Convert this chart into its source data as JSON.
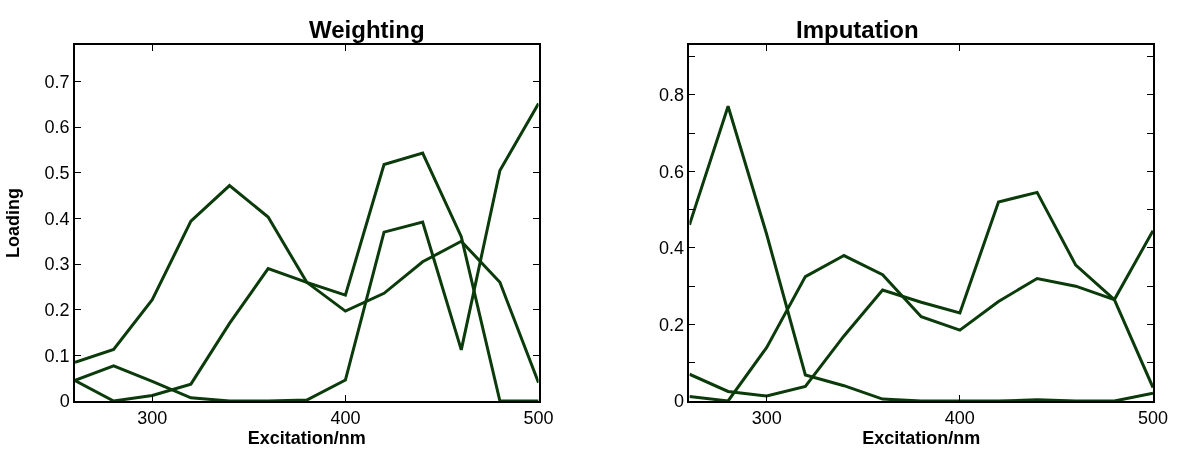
{
  "chart_data": [
    {
      "type": "line",
      "title": "Weighting",
      "xlabel": "Excitation/nm",
      "ylabel": "Loading",
      "x": [
        260,
        280,
        300,
        320,
        340,
        360,
        380,
        400,
        420,
        440,
        460,
        480,
        500
      ],
      "xlim": [
        260,
        500
      ],
      "xticks": [
        300,
        400,
        500
      ],
      "ylim": [
        0,
        0.78
      ],
      "yticks": [
        0,
        0.1,
        0.2,
        0.3,
        0.4,
        0.5,
        0.6,
        0.7
      ],
      "line_style": "solid",
      "marker": "none",
      "series": [
        {
          "color": "#0b3a0b",
          "values": [
            0.085,
            0.113,
            0.222,
            0.394,
            0.472,
            0.403,
            0.26,
            0.197,
            0.236,
            0.305,
            0.35,
            0.26,
            0.04
          ]
        },
        {
          "color": "#0b3a0b",
          "values": [
            0.045,
            0,
            0.012,
            0.037,
            0.17,
            0.29,
            0.26,
            0.232,
            0.518,
            0.543,
            0.36,
            0,
            0
          ]
        },
        {
          "color": "#0b3a0b",
          "values": [
            0.045,
            0.077,
            0.043,
            0.007,
            0,
            0,
            0.002,
            0.046,
            0.37,
            0.392,
            0.112,
            0.505,
            0.652
          ]
        }
      ]
    },
    {
      "type": "line",
      "title": "Imputation",
      "xlabel": "Excitation/nm",
      "x": [
        260,
        280,
        300,
        320,
        340,
        360,
        380,
        400,
        420,
        440,
        460,
        480,
        500
      ],
      "xlim": [
        260,
        500
      ],
      "xticks": [
        300,
        400,
        500
      ],
      "ylim": [
        0,
        0.93
      ],
      "yticks": [
        0,
        {
          "value": 0.1,
          "label": null
        },
        0.2,
        {
          "value": 0.3,
          "label": null
        },
        0.4,
        {
          "value": 0.5,
          "label": null
        },
        0.6,
        {
          "value": 0.7,
          "label": null
        },
        0.8,
        {
          "value": 0.9,
          "label": null
        }
      ],
      "line_style": "solid",
      "marker": "none",
      "series": [
        {
          "color": "#0b3a0b",
          "values": [
            0.46,
            0.77,
            0.435,
            0.068,
            0.04,
            0.005,
            0,
            0,
            0,
            0.003,
            0,
            0,
            0.02
          ]
        },
        {
          "color": "#0b3a0b",
          "values": [
            0.07,
            0.025,
            0.013,
            0.038,
            0.17,
            0.29,
            0.258,
            0.23,
            0.52,
            0.545,
            0.355,
            0.265,
            0.035
          ]
        },
        {
          "color": "#0b3a0b",
          "values": [
            0.012,
            0,
            0.14,
            0.325,
            0.38,
            0.33,
            0.22,
            0.185,
            0.26,
            0.32,
            0.3,
            0.265,
            0.445
          ]
        }
      ]
    }
  ]
}
